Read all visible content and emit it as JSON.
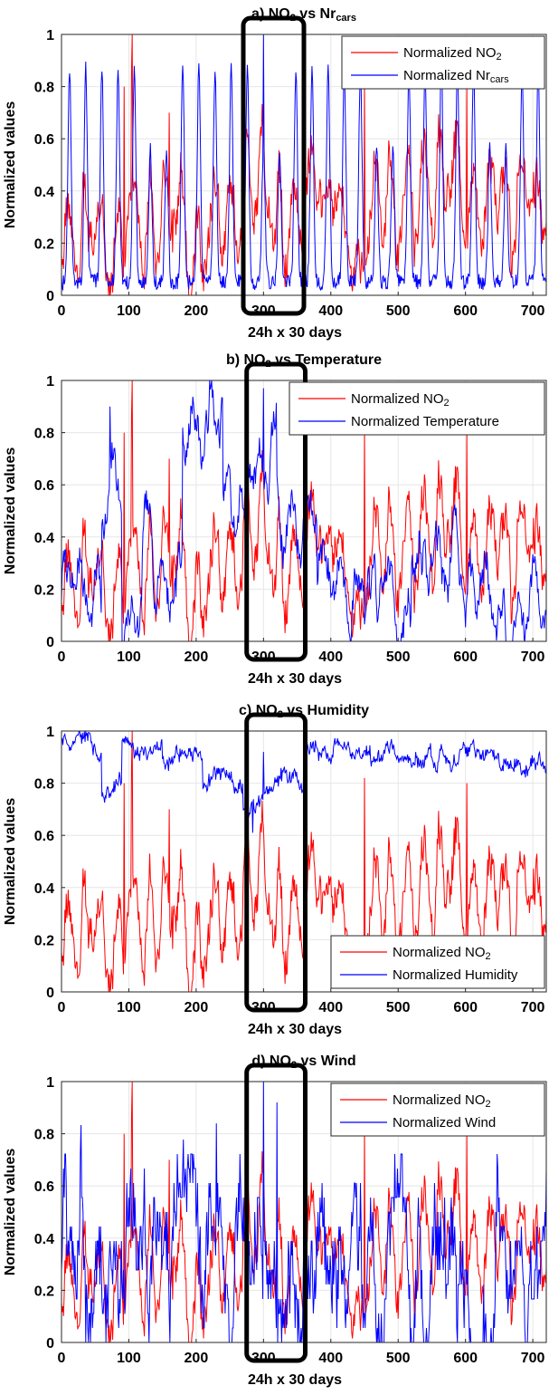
{
  "chart_data": [
    {
      "type": "line",
      "title": "a) NO2 vs Nrcars",
      "title_parts": {
        "prefix": "a) NO",
        "sub1": "2",
        "mid": " vs Nr",
        "sub2": "cars"
      },
      "xlabel": "24h x 30 days",
      "ylabel": "Normalized values",
      "xlim": [
        0,
        720
      ],
      "ylim": [
        0,
        1
      ],
      "xticks": [
        "0",
        "100",
        "200",
        "300",
        "400",
        "500",
        "600",
        "700"
      ],
      "yticks": [
        "0",
        "0.2",
        "0.4",
        "0.6",
        "0.8",
        "1"
      ],
      "grid": true,
      "legend_position": "top-right",
      "highlight_range": [
        270,
        360
      ],
      "series": [
        {
          "name": "Normalized NO2",
          "label_main": "Normalized NO",
          "label_sub": "2",
          "color": "#ff0000",
          "pattern": "no2"
        },
        {
          "name": "Normalized Nrcars",
          "label_main": "Normalized Nr",
          "label_sub": "cars",
          "color": "#0000ff",
          "pattern": "cars"
        }
      ]
    },
    {
      "type": "line",
      "title": "b) NO2 vs Temperature",
      "title_parts": {
        "prefix": "b) NO",
        "sub1": "2",
        "mid": " vs Temperature",
        "sub2": ""
      },
      "xlabel": "24h x 30 days",
      "ylabel": "Normalized values",
      "xlim": [
        0,
        720
      ],
      "ylim": [
        0,
        1
      ],
      "xticks": [
        "0",
        "100",
        "200",
        "300",
        "400",
        "500",
        "600",
        "700"
      ],
      "yticks": [
        "0",
        "0.2",
        "0.4",
        "0.6",
        "0.8",
        "1"
      ],
      "grid": true,
      "legend_position": "top-right",
      "highlight_range": [
        275,
        362
      ],
      "series": [
        {
          "name": "Normalized NO2",
          "label_main": "Normalized NO",
          "label_sub": "2",
          "color": "#ff0000",
          "pattern": "no2"
        },
        {
          "name": "Normalized Temperature",
          "label_main": "Normalized Temperature",
          "label_sub": "",
          "color": "#0000ff",
          "pattern": "temp"
        }
      ]
    },
    {
      "type": "line",
      "title": "c) NO2 vs Humidity",
      "title_parts": {
        "prefix": "c) NO",
        "sub1": "2",
        "mid": " vs Humidity",
        "sub2": ""
      },
      "xlabel": "24h x 30 days",
      "ylabel": "Normalized values",
      "xlim": [
        0,
        720
      ],
      "ylim": [
        0,
        1
      ],
      "xticks": [
        "0",
        "100",
        "200",
        "300",
        "400",
        "500",
        "600",
        "700"
      ],
      "yticks": [
        "0",
        "0.2",
        "0.4",
        "0.6",
        "0.8",
        "1"
      ],
      "grid": true,
      "legend_position": "bottom-right",
      "highlight_range": [
        275,
        362
      ],
      "series": [
        {
          "name": "Normalized NO2",
          "label_main": "Normalized NO",
          "label_sub": "2",
          "color": "#ff0000",
          "pattern": "no2"
        },
        {
          "name": "Normalized Humidity",
          "label_main": "Normalized Humidity",
          "label_sub": "",
          "color": "#0000ff",
          "pattern": "hum"
        }
      ]
    },
    {
      "type": "line",
      "title": "d) NO2 vs Wind",
      "title_parts": {
        "prefix": "d) NO",
        "sub1": "2",
        "mid": " vs Wind",
        "sub2": ""
      },
      "xlabel": "24h x 30 days",
      "ylabel": "Normalized values",
      "xlim": [
        0,
        720
      ],
      "ylim": [
        0,
        1
      ],
      "xticks": [
        "0",
        "100",
        "200",
        "300",
        "400",
        "500",
        "600",
        "700"
      ],
      "yticks": [
        "0",
        "0.2",
        "0.4",
        "0.6",
        "0.8",
        "1"
      ],
      "grid": true,
      "legend_position": "top-right",
      "highlight_range": [
        275,
        362
      ],
      "series": [
        {
          "name": "Normalized NO2",
          "label_main": "Normalized NO",
          "label_sub": "2",
          "color": "#ff0000",
          "pattern": "no2"
        },
        {
          "name": "Normalized Wind",
          "label_main": "Normalized Wind",
          "label_sub": "",
          "color": "#0000ff",
          "pattern": "wind"
        }
      ]
    }
  ]
}
